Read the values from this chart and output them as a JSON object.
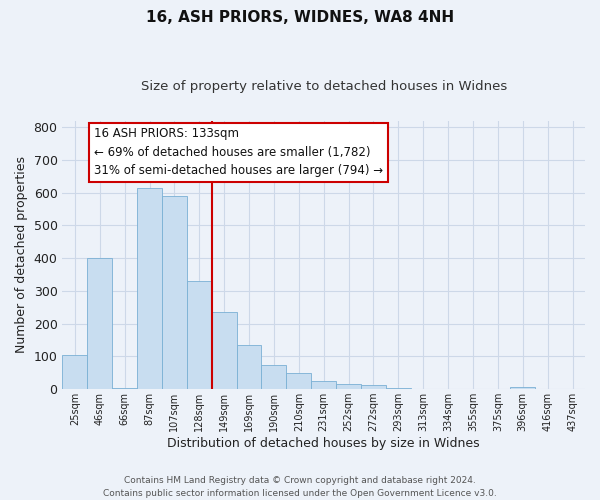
{
  "title": "16, ASH PRIORS, WIDNES, WA8 4NH",
  "subtitle": "Size of property relative to detached houses in Widnes",
  "xlabel": "Distribution of detached houses by size in Widnes",
  "ylabel": "Number of detached properties",
  "bar_labels": [
    "25sqm",
    "46sqm",
    "66sqm",
    "87sqm",
    "107sqm",
    "128sqm",
    "149sqm",
    "169sqm",
    "190sqm",
    "210sqm",
    "231sqm",
    "252sqm",
    "272sqm",
    "293sqm",
    "313sqm",
    "334sqm",
    "355sqm",
    "375sqm",
    "396sqm",
    "416sqm",
    "437sqm"
  ],
  "bar_values": [
    105,
    400,
    5,
    615,
    590,
    330,
    235,
    135,
    75,
    50,
    25,
    15,
    12,
    5,
    0,
    0,
    0,
    0,
    8,
    0,
    0
  ],
  "bar_color": "#c8ddf0",
  "bar_edge_color": "#7ab0d4",
  "ref_line_index": 5,
  "ref_line_color": "#cc0000",
  "ylim": [
    0,
    820
  ],
  "yticks": [
    0,
    100,
    200,
    300,
    400,
    500,
    600,
    700,
    800
  ],
  "annotation_title": "16 ASH PRIORS: 133sqm",
  "annotation_line1": "← 69% of detached houses are smaller (1,782)",
  "annotation_line2": "31% of semi-detached houses are larger (794) →",
  "annotation_box_color": "#ffffff",
  "annotation_box_edge": "#cc0000",
  "footer_line1": "Contains HM Land Registry data © Crown copyright and database right 2024.",
  "footer_line2": "Contains public sector information licensed under the Open Government Licence v3.0.",
  "background_color": "#edf2f9",
  "grid_color": "#cdd8e8"
}
